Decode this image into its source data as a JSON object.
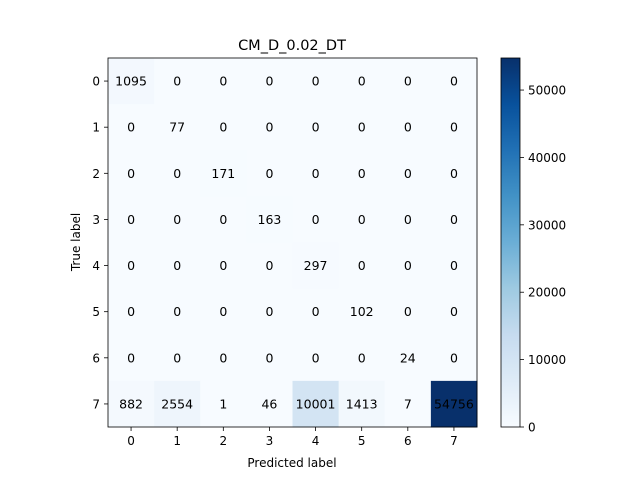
{
  "chart_data": {
    "type": "heatmap",
    "title": "CM_D_0.02_DT",
    "xlabel": "Predicted label",
    "ylabel": "True label",
    "x_ticks": [
      "0",
      "1",
      "2",
      "3",
      "4",
      "5",
      "6",
      "7"
    ],
    "y_ticks": [
      "0",
      "1",
      "2",
      "3",
      "4",
      "5",
      "6",
      "7"
    ],
    "matrix": [
      [
        1095,
        0,
        0,
        0,
        0,
        0,
        0,
        0
      ],
      [
        0,
        77,
        0,
        0,
        0,
        0,
        0,
        0
      ],
      [
        0,
        0,
        171,
        0,
        0,
        0,
        0,
        0
      ],
      [
        0,
        0,
        0,
        163,
        0,
        0,
        0,
        0
      ],
      [
        0,
        0,
        0,
        0,
        297,
        0,
        0,
        0
      ],
      [
        0,
        0,
        0,
        0,
        0,
        102,
        0,
        0
      ],
      [
        0,
        0,
        0,
        0,
        0,
        0,
        24,
        0
      ],
      [
        882,
        2554,
        1,
        46,
        10001,
        1413,
        7,
        54756
      ]
    ],
    "colormap": "Blues",
    "colormap_stops": [
      "#f7fbff",
      "#deebf7",
      "#c6dbef",
      "#9ecae1",
      "#6baed6",
      "#4292c6",
      "#2171b5",
      "#08519c",
      "#08306b"
    ],
    "value_range": [
      0,
      54756
    ],
    "colorbar_ticks": [
      0,
      10000,
      20000,
      30000,
      40000,
      50000
    ],
    "text_color_light": "#ffffff",
    "text_color_dark": "#08306b",
    "grid": false
  }
}
